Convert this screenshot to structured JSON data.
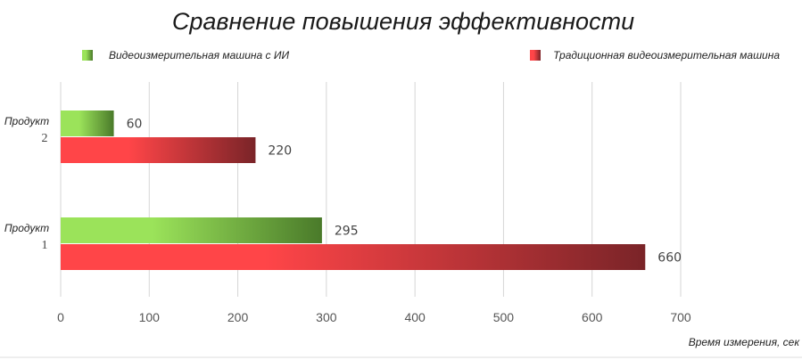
{
  "chart_data": {
    "type": "bar",
    "orientation": "horizontal",
    "title": "Сравнение повышения эффективности",
    "xlabel": "Время измерения, сек",
    "ylabel": "",
    "xlim": [
      0,
      700
    ],
    "x_ticks": [
      0,
      100,
      200,
      300,
      400,
      500,
      600,
      700
    ],
    "grid": true,
    "legend_position": "top",
    "categories": [
      {
        "line1": "Продукт",
        "line2": "2"
      },
      {
        "line1": "Продукт",
        "line2": "1"
      }
    ],
    "series": [
      {
        "name": "Видеоизмерительная машина с ИИ",
        "color_start": "#9be35a",
        "color_end": "#4a7a2a",
        "values": [
          60,
          295
        ]
      },
      {
        "name": "Традиционная видеоизмерительная машина",
        "color_start": "#ff4548",
        "color_end": "#7a2428",
        "values": [
          220,
          660
        ]
      }
    ]
  }
}
